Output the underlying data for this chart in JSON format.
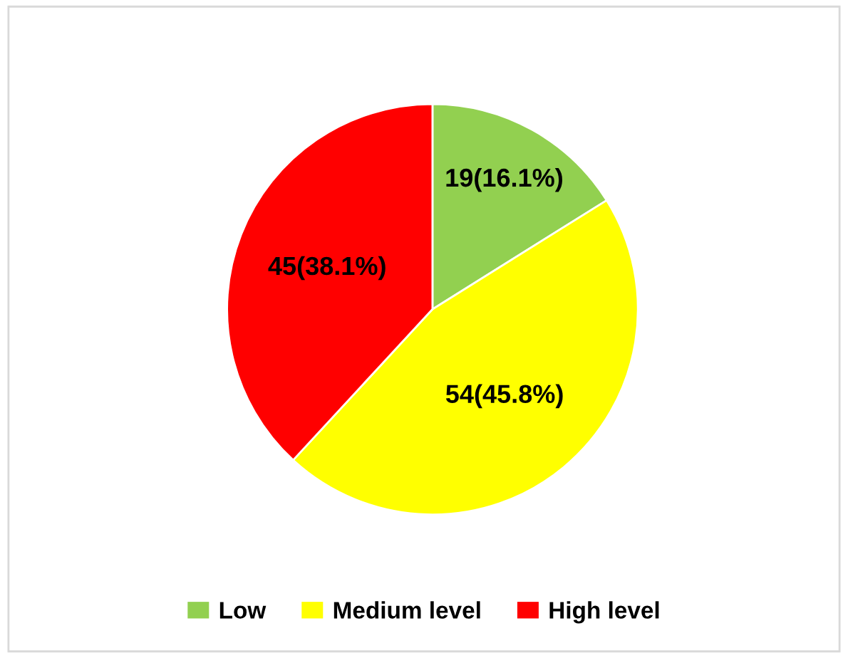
{
  "chart_data": {
    "type": "pie",
    "categories": [
      "Low",
      "Medium level",
      "High level"
    ],
    "values": [
      19,
      54,
      45
    ],
    "colors": [
      "#92d050",
      "#ffff00",
      "#ff0000"
    ],
    "value_labels": [
      "19(16.1%)",
      "54(45.8%)",
      "45(38.1%)"
    ],
    "legend": "bottom"
  }
}
